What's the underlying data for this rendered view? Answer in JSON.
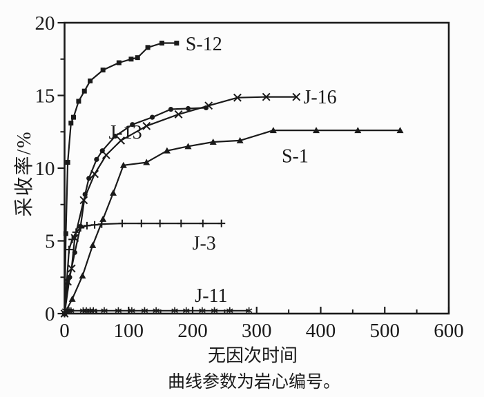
{
  "figure": {
    "background": "#fcfcfc",
    "ink": "#1a1a1a"
  },
  "chart_data": {
    "type": "line",
    "title": "",
    "xlabel": "无因次时间",
    "ylabel": "采收率/%",
    "caption": "曲线参数为岩心编号。",
    "xlim": [
      0,
      600
    ],
    "ylim": [
      0,
      20
    ],
    "x_major_ticks": [
      0,
      100,
      200,
      300,
      400,
      500,
      600
    ],
    "x_minor_ticks": [
      50,
      150,
      250,
      350,
      450,
      550
    ],
    "y_major_ticks": [
      0,
      5,
      10,
      15,
      20
    ],
    "y_minor_ticks": [
      2.5,
      7.5,
      12.5,
      17.5
    ],
    "grid": false,
    "legend": "inline-labels",
    "series": [
      {
        "name": "S-12",
        "marker": "square",
        "label_anchor": {
          "x": 189,
          "y": 18.5,
          "anchor": "start"
        },
        "points": [
          [
            0,
            0
          ],
          [
            2,
            5.5
          ],
          [
            5,
            10.4
          ],
          [
            10,
            13.1
          ],
          [
            14,
            13.5
          ],
          [
            22,
            14.6
          ],
          [
            31,
            15.3
          ],
          [
            40,
            16.0
          ],
          [
            60,
            16.75
          ],
          [
            85,
            17.25
          ],
          [
            104,
            17.5
          ],
          [
            114,
            17.6
          ],
          [
            130,
            18.3
          ],
          [
            152,
            18.6
          ],
          [
            175,
            18.6
          ]
        ]
      },
      {
        "name": "J-13",
        "marker": "circle",
        "label_anchor": {
          "x": 95,
          "y": 12.45,
          "anchor": "middle"
        },
        "points": [
          [
            0,
            0
          ],
          [
            8,
            2.5
          ],
          [
            16,
            4.2
          ],
          [
            25,
            6.0
          ],
          [
            32,
            8.2
          ],
          [
            38,
            9.3
          ],
          [
            50,
            10.6
          ],
          [
            59,
            11.2
          ],
          [
            79,
            12.2
          ],
          [
            106,
            13.0
          ],
          [
            137,
            13.5
          ],
          [
            166,
            14.05
          ],
          [
            193,
            14.1
          ],
          [
            221,
            14.15
          ]
        ]
      },
      {
        "name": "J-16",
        "marker": "x",
        "label_anchor": {
          "x": 373,
          "y": 14.85,
          "anchor": "start"
        },
        "points": [
          [
            0,
            0
          ],
          [
            5,
            2.2
          ],
          [
            11,
            3.1
          ],
          [
            16,
            5.2
          ],
          [
            30,
            7.8
          ],
          [
            47,
            9.6
          ],
          [
            65,
            10.9
          ],
          [
            88,
            11.9
          ],
          [
            128,
            12.9
          ],
          [
            178,
            13.7
          ],
          [
            225,
            14.3
          ],
          [
            270,
            14.85
          ],
          [
            315,
            14.9
          ],
          [
            362,
            14.9
          ]
        ]
      },
      {
        "name": "S-1",
        "marker": "triangle",
        "label_anchor": {
          "x": 360,
          "y": 10.8,
          "anchor": "middle"
        },
        "points": [
          [
            0,
            0
          ],
          [
            12,
            1.0
          ],
          [
            28,
            2.6
          ],
          [
            44,
            4.7
          ],
          [
            60,
            6.5
          ],
          [
            76,
            8.3
          ],
          [
            92,
            10.2
          ],
          [
            128,
            10.4
          ],
          [
            160,
            11.2
          ],
          [
            193,
            11.5
          ],
          [
            232,
            11.8
          ],
          [
            274,
            11.9
          ],
          [
            326,
            12.6
          ],
          [
            393,
            12.6
          ],
          [
            458,
            12.6
          ],
          [
            524,
            12.6
          ]
        ]
      },
      {
        "name": "J-3",
        "marker": "plus",
        "label_anchor": {
          "x": 218,
          "y": 4.8,
          "anchor": "middle"
        },
        "points": [
          [
            0,
            0
          ],
          [
            7,
            4.4
          ],
          [
            12,
            5.1
          ],
          [
            18,
            5.6
          ],
          [
            25,
            5.9
          ],
          [
            35,
            6.05
          ],
          [
            47,
            6.1
          ],
          [
            58,
            6.15
          ],
          [
            90,
            6.2
          ],
          [
            120,
            6.2
          ],
          [
            149,
            6.2
          ],
          [
            182,
            6.2
          ],
          [
            216,
            6.2
          ],
          [
            245,
            6.2
          ]
        ]
      },
      {
        "name": "J-11",
        "marker": "asterisk",
        "label_anchor": {
          "x": 229,
          "y": 1.2,
          "anchor": "middle"
        },
        "points": [
          [
            1,
            0.2
          ],
          [
            4,
            0.2
          ],
          [
            7,
            0.2
          ],
          [
            10,
            0.2
          ],
          [
            29,
            0.2
          ],
          [
            34,
            0.2
          ],
          [
            40,
            0.2
          ],
          [
            45,
            0.2
          ],
          [
            62,
            0.2
          ],
          [
            84,
            0.2
          ],
          [
            105,
            0.2
          ],
          [
            125,
            0.2
          ],
          [
            143,
            0.2
          ],
          [
            172,
            0.2
          ],
          [
            190,
            0.2
          ],
          [
            215,
            0.2
          ],
          [
            234,
            0.2
          ],
          [
            258,
            0.2
          ],
          [
            288,
            0.2
          ]
        ]
      }
    ]
  }
}
